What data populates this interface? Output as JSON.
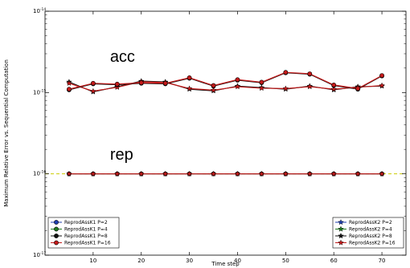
{
  "chart_data": {
    "type": "line",
    "title": "",
    "xlabel": "Time step",
    "ylabel": "Maximum Relative Error vs. Sequential Computation",
    "xlim": [
      0,
      75
    ],
    "ylim": [
      1e-17,
      1e-14
    ],
    "yscale": "log",
    "xticks": [
      10,
      20,
      30,
      40,
      50,
      60,
      70
    ],
    "x_tick_labels": [
      "10",
      "20",
      "30",
      "40",
      "50",
      "60",
      "70"
    ],
    "yticks": [
      1e-17,
      1e-16,
      1e-15,
      1e-14
    ],
    "y_tick_base": "10",
    "y_tick_exponents": [
      "-17",
      "-16",
      "-15",
      "-14"
    ],
    "grid": false,
    "x": [
      5,
      10,
      15,
      20,
      25,
      30,
      35,
      40,
      45,
      50,
      55,
      60,
      65,
      70
    ],
    "reference_line": {
      "y": 1e-16,
      "color": "#cccc00",
      "style": "dashed"
    },
    "annotations": [
      {
        "text": "acc",
        "x": 13.5,
        "y": 2.4e-15
      },
      {
        "text": "rep",
        "x": 13.5,
        "y": 1.5e-16
      }
    ],
    "legends": [
      {
        "placement": "lower-left",
        "entries": [
          {
            "name": "ReprodAssK1 P=2",
            "color": "#1f3fb0",
            "marker": "o"
          },
          {
            "name": "ReprodAssK1 P=4",
            "color": "#1f7a1f",
            "marker": "o"
          },
          {
            "name": "ReprodAssK1 P=8",
            "color": "#111111",
            "marker": "o"
          },
          {
            "name": "ReprodAssK1 P=16",
            "color": "#c41a1a",
            "marker": "o"
          }
        ]
      },
      {
        "placement": "lower-right",
        "entries": [
          {
            "name": "ReprodAssK2 P=2",
            "color": "#1f3fb0",
            "marker": "*"
          },
          {
            "name": "ReprodAssK2 P=4",
            "color": "#1f7a1f",
            "marker": "*"
          },
          {
            "name": "ReprodAssK2 P=8",
            "color": "#111111",
            "marker": "*"
          },
          {
            "name": "ReprodAssK2 P=16",
            "color": "#c41a1a",
            "marker": "*"
          }
        ]
      }
    ],
    "series": [
      {
        "group": "acc",
        "color": "#111111",
        "marker": "*",
        "values": [
          1.35e-15,
          1.02e-15,
          1.18e-15,
          1.38e-15,
          1.35e-15,
          1.1e-15,
          1.05e-15,
          1.2e-15,
          1.15e-15,
          1.1e-15,
          1.2e-15,
          1.08e-15,
          1.18e-15,
          1.2e-15
        ]
      },
      {
        "group": "acc",
        "color": "#c41a1a",
        "marker": "*",
        "values": [
          1.3e-15,
          1.04e-15,
          1.16e-15,
          1.36e-15,
          1.33e-15,
          1.12e-15,
          1.07e-15,
          1.18e-15,
          1.13e-15,
          1.12e-15,
          1.18e-15,
          1.1e-15,
          1.16e-15,
          1.22e-15
        ]
      },
      {
        "group": "acc",
        "color": "#111111",
        "marker": "o",
        "values": [
          1.08e-15,
          1.28e-15,
          1.25e-15,
          1.3e-15,
          1.28e-15,
          1.5e-15,
          1.2e-15,
          1.42e-15,
          1.32e-15,
          1.75e-15,
          1.68e-15,
          1.22e-15,
          1.1e-15,
          1.6e-15
        ]
      },
      {
        "group": "acc",
        "color": "#c41a1a",
        "marker": "o",
        "values": [
          1.1e-15,
          1.3e-15,
          1.27e-15,
          1.32e-15,
          1.3e-15,
          1.52e-15,
          1.22e-15,
          1.44e-15,
          1.34e-15,
          1.77e-15,
          1.7e-15,
          1.24e-15,
          1.12e-15,
          1.62e-15
        ]
      },
      {
        "group": "rep",
        "color": "#111111",
        "marker": "o",
        "values": [
          1e-16,
          1e-16,
          1e-16,
          1e-16,
          1e-16,
          1e-16,
          1e-16,
          1e-16,
          1e-16,
          1e-16,
          1e-16,
          1e-16,
          1e-16,
          1e-16
        ]
      },
      {
        "group": "rep",
        "color": "#c41a1a",
        "marker": "*",
        "values": [
          1e-16,
          1e-16,
          1e-16,
          1e-16,
          1e-16,
          1e-16,
          1e-16,
          1e-16,
          1e-16,
          1e-16,
          1e-16,
          1e-16,
          1e-16,
          1e-16
        ]
      }
    ]
  }
}
